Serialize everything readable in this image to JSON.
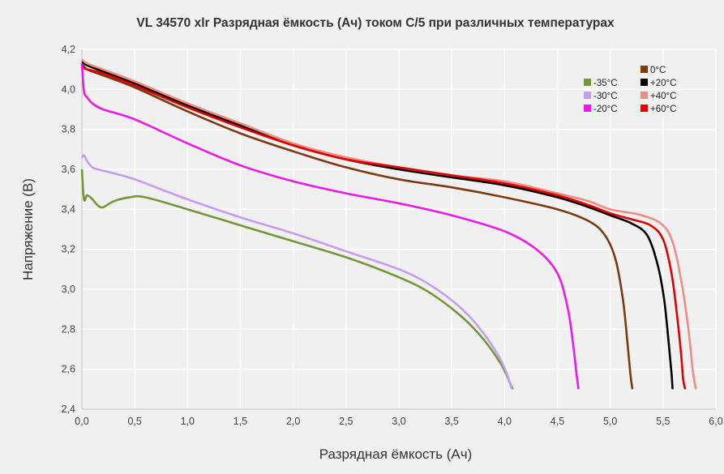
{
  "chart_data": {
    "type": "line",
    "title": "VL 34570 xlr Разрядная ёмкость (Ач) током С/5 при различных температурах",
    "xlabel": "Разрядная ёмкость (Ач)",
    "ylabel": "Напряжение (В)",
    "xlim": [
      0,
      6
    ],
    "ylim": [
      2.4,
      4.2
    ],
    "xticks": [
      0,
      0.5,
      1,
      1.5,
      2,
      2.5,
      3,
      3.5,
      4,
      4.5,
      5,
      5.5,
      6
    ],
    "xtick_labels": [
      "0,0",
      "0,5",
      "1,0",
      "1,5",
      "2,0",
      "2,5",
      "3,0",
      "3,5",
      "4,0",
      "4,5",
      "5,0",
      "5,5",
      "6,0"
    ],
    "yticks": [
      2.4,
      2.6,
      2.8,
      3.0,
      3.2,
      3.4,
      3.6,
      3.8,
      4.0,
      4.2
    ],
    "ytick_labels": [
      "2,4",
      "2,6",
      "2,8",
      "3,0",
      "3,2",
      "3,4",
      "3,6",
      "3,8",
      "4,0",
      "4,2"
    ],
    "grid": true,
    "legend_position": "top-right",
    "series": [
      {
        "name": "0°C",
        "color": "#7b3a10",
        "x": [
          0,
          0.05,
          0.2,
          0.5,
          1,
          1.5,
          2,
          2.5,
          3,
          3.5,
          4,
          4.5,
          4.8,
          4.95,
          5.05,
          5.12,
          5.16,
          5.19,
          5.21
        ],
        "y": [
          4.13,
          4.1,
          4.07,
          4.01,
          3.89,
          3.78,
          3.69,
          3.61,
          3.55,
          3.51,
          3.46,
          3.4,
          3.34,
          3.27,
          3.15,
          2.95,
          2.75,
          2.58,
          2.5
        ]
      },
      {
        "name": "+20°C",
        "color": "#000000",
        "x": [
          0,
          0.05,
          0.2,
          0.5,
          1,
          1.5,
          2,
          2.5,
          3,
          3.5,
          4,
          4.5,
          4.8,
          5.0,
          5.2,
          5.35,
          5.45,
          5.51,
          5.55,
          5.58,
          5.59
        ],
        "y": [
          4.14,
          4.12,
          4.09,
          4.03,
          3.92,
          3.82,
          3.72,
          3.65,
          3.6,
          3.56,
          3.52,
          3.46,
          3.41,
          3.37,
          3.33,
          3.27,
          3.12,
          2.95,
          2.75,
          2.58,
          2.5
        ]
      },
      {
        "name": "+40°C",
        "color": "#f08c84",
        "x": [
          0,
          0.05,
          0.2,
          0.5,
          1,
          1.5,
          2,
          2.5,
          3,
          3.5,
          4,
          4.5,
          4.8,
          5.0,
          5.3,
          5.5,
          5.6,
          5.68,
          5.74,
          5.78,
          5.81
        ],
        "y": [
          4.15,
          4.13,
          4.1,
          4.04,
          3.93,
          3.83,
          3.73,
          3.66,
          3.61,
          3.57,
          3.54,
          3.48,
          3.44,
          3.4,
          3.37,
          3.32,
          3.22,
          3.02,
          2.8,
          2.6,
          2.5
        ]
      },
      {
        "name": "+60°C",
        "color": "#e00000",
        "x": [
          0,
          0.05,
          0.2,
          0.5,
          1,
          1.5,
          2,
          2.5,
          3,
          3.5,
          4,
          4.5,
          4.8,
          5.0,
          5.2,
          5.38,
          5.5,
          5.58,
          5.63,
          5.67,
          5.69,
          5.71
        ],
        "y": [
          4.11,
          4.1,
          4.08,
          4.02,
          3.91,
          3.81,
          3.72,
          3.65,
          3.61,
          3.57,
          3.53,
          3.47,
          3.42,
          3.38,
          3.35,
          3.32,
          3.25,
          3.08,
          2.88,
          2.68,
          2.55,
          2.5
        ]
      },
      {
        "name": "-35°C",
        "color": "#76963a",
        "x": [
          0,
          0.02,
          0.05,
          0.1,
          0.15,
          0.2,
          0.3,
          0.45,
          0.6,
          1,
          1.5,
          2,
          2.5,
          3,
          3.3,
          3.6,
          3.8,
          3.95,
          4.02,
          4.06,
          4.08
        ],
        "y": [
          3.6,
          3.45,
          3.47,
          3.45,
          3.42,
          3.41,
          3.44,
          3.46,
          3.46,
          3.4,
          3.32,
          3.24,
          3.16,
          3.06,
          2.98,
          2.86,
          2.75,
          2.64,
          2.57,
          2.52,
          2.5
        ]
      },
      {
        "name": "-30°C",
        "color": "#c59df0",
        "x": [
          0,
          0.02,
          0.05,
          0.1,
          0.15,
          0.3,
          0.5,
          1,
          1.5,
          2,
          2.5,
          3,
          3.3,
          3.6,
          3.8,
          3.95,
          4.02,
          4.05,
          4.07
        ],
        "y": [
          3.66,
          3.67,
          3.64,
          3.61,
          3.6,
          3.58,
          3.55,
          3.45,
          3.36,
          3.28,
          3.19,
          3.1,
          3.02,
          2.9,
          2.78,
          2.66,
          2.58,
          2.53,
          2.5
        ]
      },
      {
        "name": "-20°C",
        "color": "#ee18e8",
        "x": [
          0,
          0.02,
          0.05,
          0.1,
          0.2,
          0.5,
          1,
          1.5,
          2,
          2.5,
          3,
          3.5,
          4,
          4.3,
          4.5,
          4.6,
          4.65,
          4.68,
          4.7
        ],
        "y": [
          4.13,
          3.99,
          3.96,
          3.93,
          3.9,
          3.85,
          3.73,
          3.62,
          3.54,
          3.48,
          3.43,
          3.37,
          3.29,
          3.2,
          3.08,
          2.9,
          2.72,
          2.58,
          2.5
        ]
      }
    ],
    "legend": [
      {
        "name": "0°C",
        "color": "#7b3a10",
        "col": 1,
        "row": 0
      },
      {
        "name": "-35°C",
        "color": "#76963a",
        "col": 0,
        "row": 1
      },
      {
        "name": "+20°C",
        "color": "#000000",
        "col": 1,
        "row": 1
      },
      {
        "name": "-30°C",
        "color": "#c59df0",
        "col": 0,
        "row": 2
      },
      {
        "name": "+40°C",
        "color": "#f08c84",
        "col": 1,
        "row": 2
      },
      {
        "name": "-20°C",
        "color": "#ee18e8",
        "col": 0,
        "row": 3
      },
      {
        "name": "+60°C",
        "color": "#e00000",
        "col": 1,
        "row": 3
      }
    ]
  }
}
